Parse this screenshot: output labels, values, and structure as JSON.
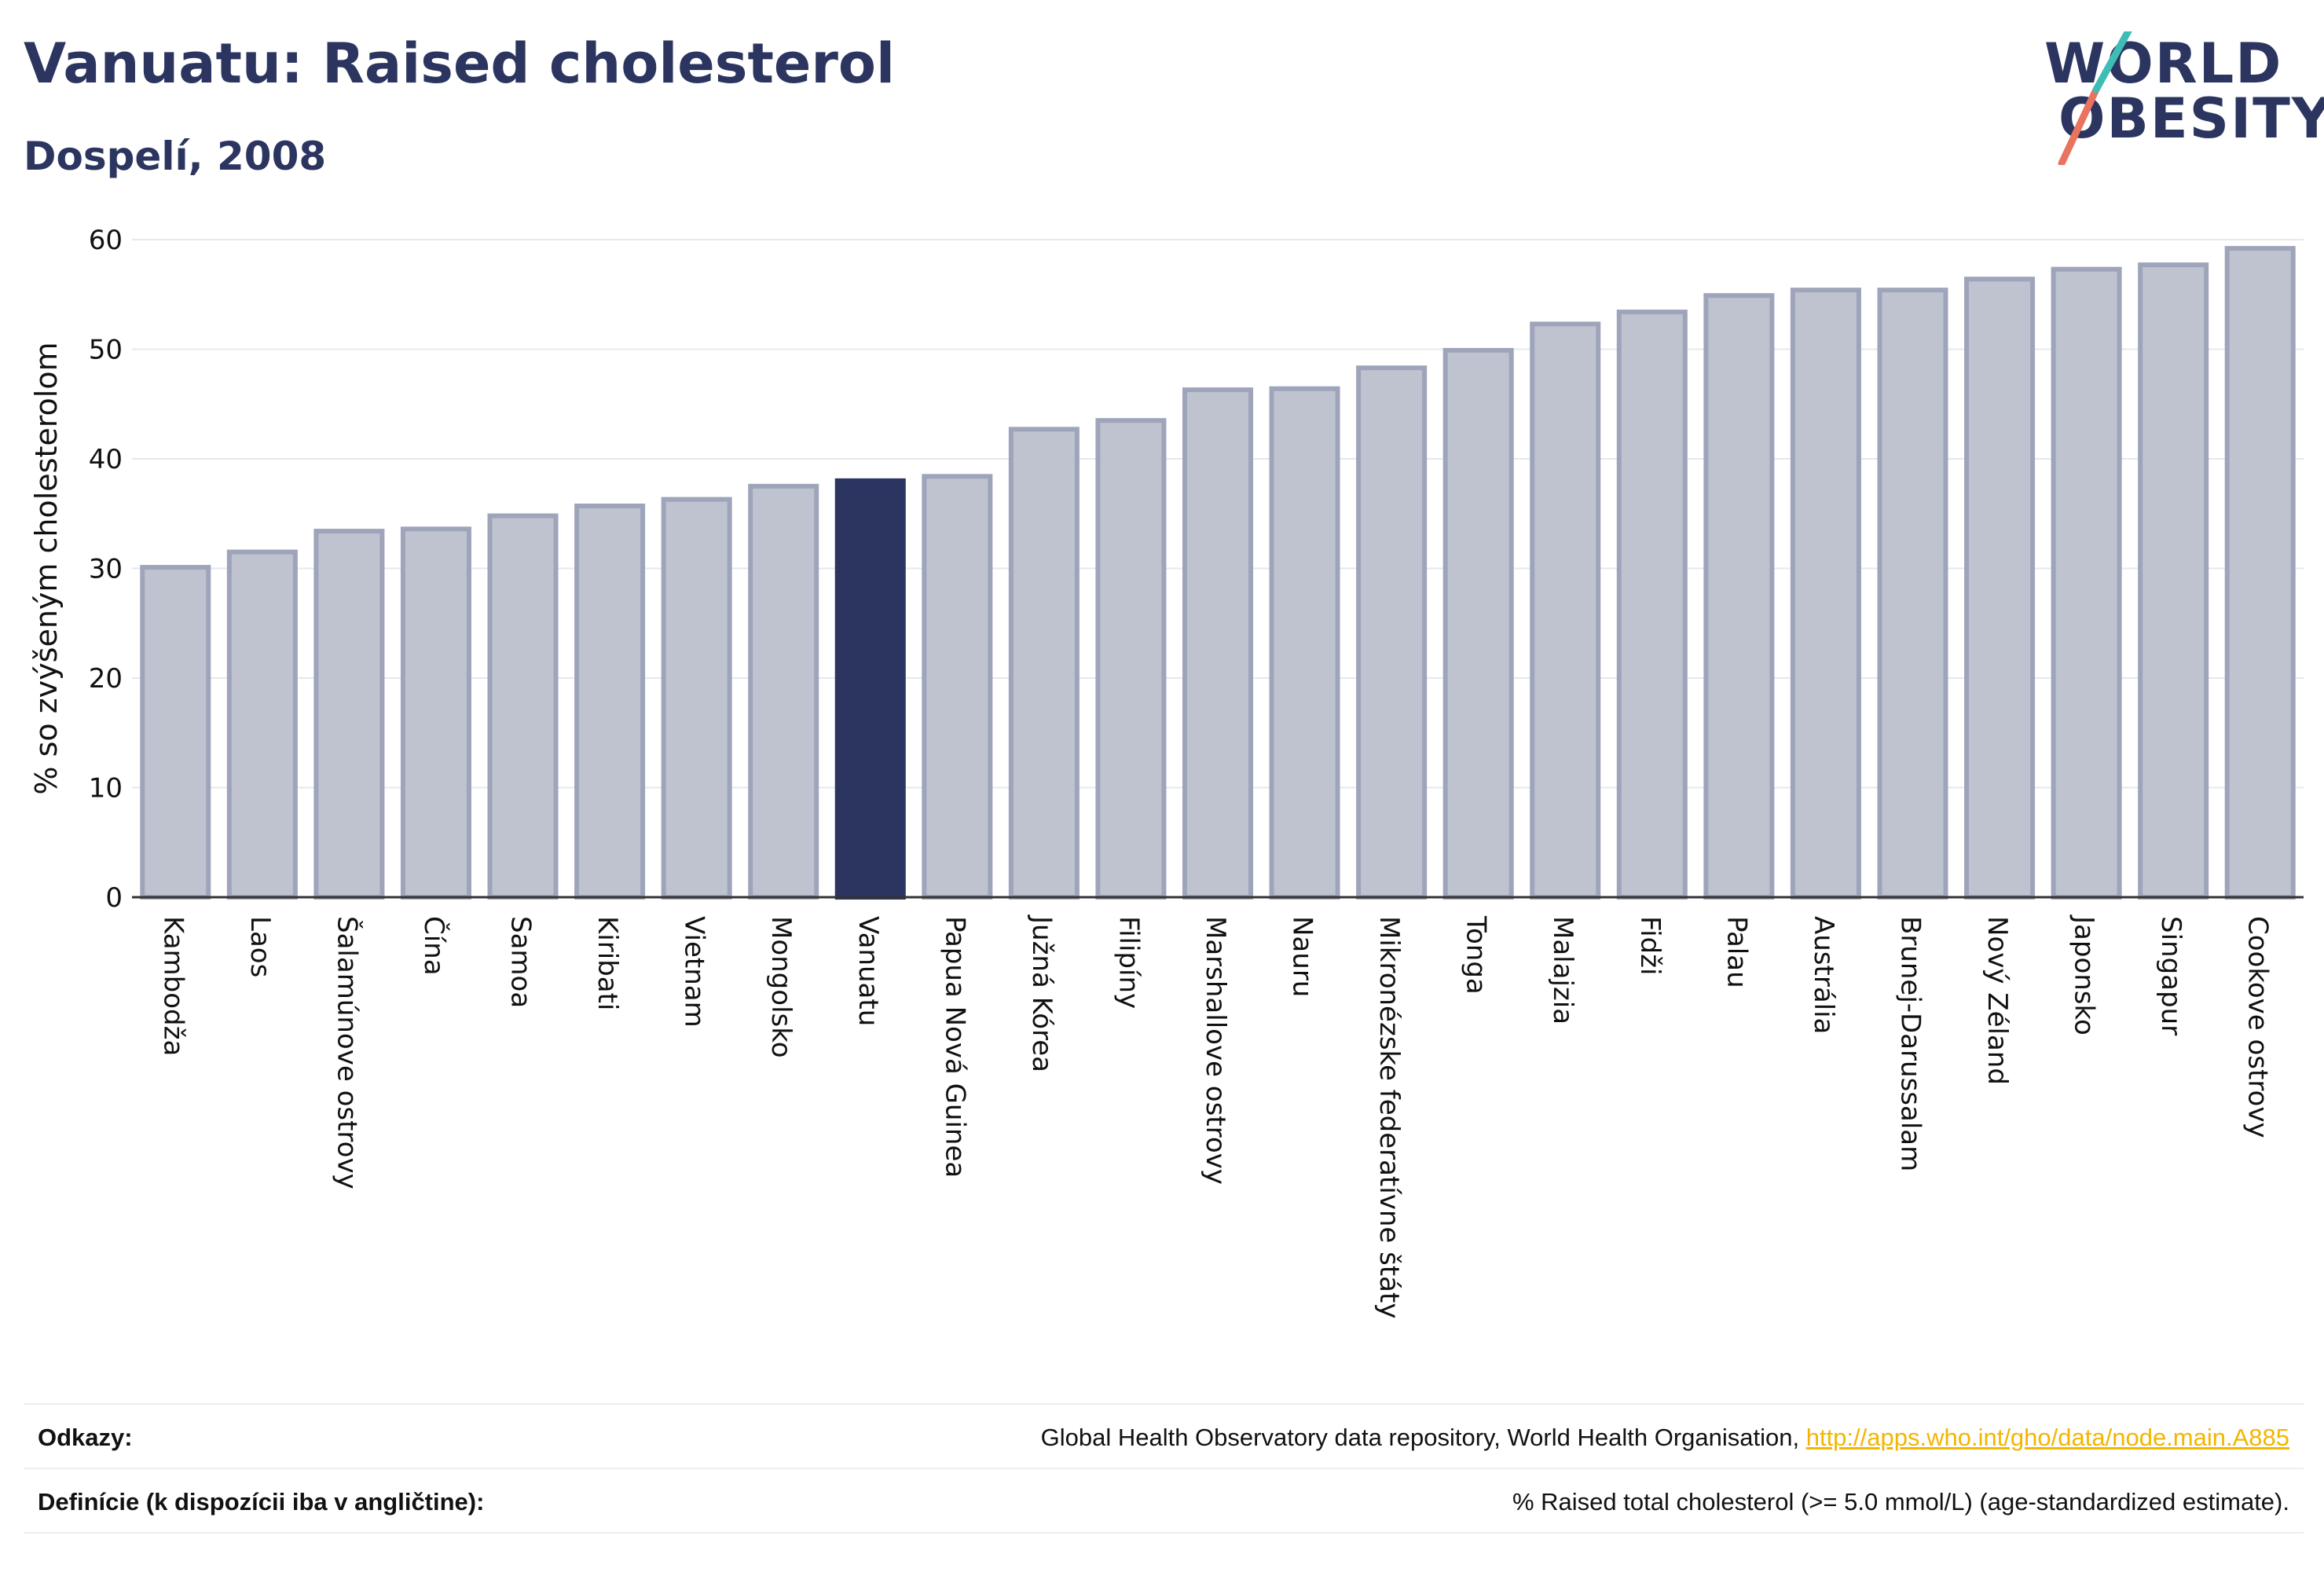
{
  "header": {
    "title": "Vanuatu: Raised cholesterol",
    "subtitle": "Dospelí, 2008"
  },
  "logo": {
    "line1": "WORLD",
    "line2": "OBESITY"
  },
  "chart_data": {
    "type": "bar",
    "ylabel": "% so zvýšeným cholesterolom",
    "xlabel": "",
    "ylim": [
      0,
      60
    ],
    "yticks": [
      0,
      10,
      20,
      30,
      40,
      50,
      60
    ],
    "grid": true,
    "highlight": "Vanuatu",
    "colors": {
      "bar": "#bfc3d0",
      "bar_edge": "#9ea4ba",
      "highlight": "#2b3560",
      "grid": "#e6e8ee",
      "axis": "#333333"
    },
    "categories": [
      "Kambodža",
      "Laos",
      "Šalamúnove ostrovy",
      "Čína",
      "Samoa",
      "Kiribati",
      "Vietnam",
      "Mongolsko",
      "Vanuatu",
      "Papua Nová Guinea",
      "Južná Kórea",
      "Filipíny",
      "Marshallove ostrovy",
      "Nauru",
      "Mikronézske federatívne štáty",
      "Tonga",
      "Malajzia",
      "Fidži",
      "Palau",
      "Austrália",
      "Brunej-Darussalam",
      "Nový Zéland",
      "Japonsko",
      "Singapur",
      "Cookove ostrovy"
    ],
    "values": [
      30.1,
      31.5,
      33.4,
      33.6,
      34.8,
      35.7,
      36.3,
      37.5,
      38.0,
      38.4,
      42.7,
      43.5,
      46.3,
      46.4,
      48.3,
      49.9,
      52.3,
      53.4,
      54.9,
      55.4,
      55.4,
      56.4,
      57.3,
      57.7,
      59.2
    ]
  },
  "footer": {
    "sources_label": "Odkazy:",
    "sources_text": "Global Health Observatory data repository, World Health Organisation,",
    "sources_link": "http://apps.who.int/gho/data/node.main.A885",
    "definitions_label": "Definície (k dispozícii iba v angličtine):",
    "definitions_text": "% Raised total cholesterol (>= 5.0 mmol/L) (age-standardized estimate)."
  }
}
